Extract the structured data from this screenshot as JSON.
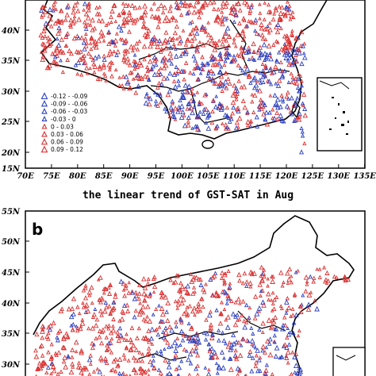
{
  "panel_a": {
    "lat_ticks": [
      "40N",
      "35N",
      "30N",
      "25N",
      "20N",
      "15N"
    ],
    "lon_ticks": [
      "70E",
      "75E",
      "80E",
      "85E",
      "90E",
      "95E",
      "100E",
      "105E",
      "110E",
      "115E",
      "120E",
      "125E",
      "130E",
      "135E"
    ],
    "legend": [
      {
        "label": "-0.12 - -0.09",
        "color": "#2a3fbf"
      },
      {
        "label": "-0.09 - -0.06",
        "color": "#2a3fbf"
      },
      {
        "label": "-0.06 - -0.03",
        "color": "#2a3fbf"
      },
      {
        "label": "-0.03 - 0",
        "color": "#2a3fbf"
      },
      {
        "label": "0 - 0.03",
        "color": "#d93030"
      },
      {
        "label": "0.03 - 0.06",
        "color": "#d93030"
      },
      {
        "label": "0.06 - 0.09",
        "color": "#d93030"
      },
      {
        "label": "0.09 - 0.12",
        "color": "#d93030"
      }
    ]
  },
  "panel_b": {
    "title": "the linear trend of GST-SAT in Aug",
    "letter": "b",
    "lat_ticks": [
      "55N",
      "50N",
      "45N",
      "40N",
      "35N",
      "30N"
    ]
  },
  "colors": {
    "positive": "#d93030",
    "negative": "#2a3fbf",
    "border": "#000000"
  }
}
